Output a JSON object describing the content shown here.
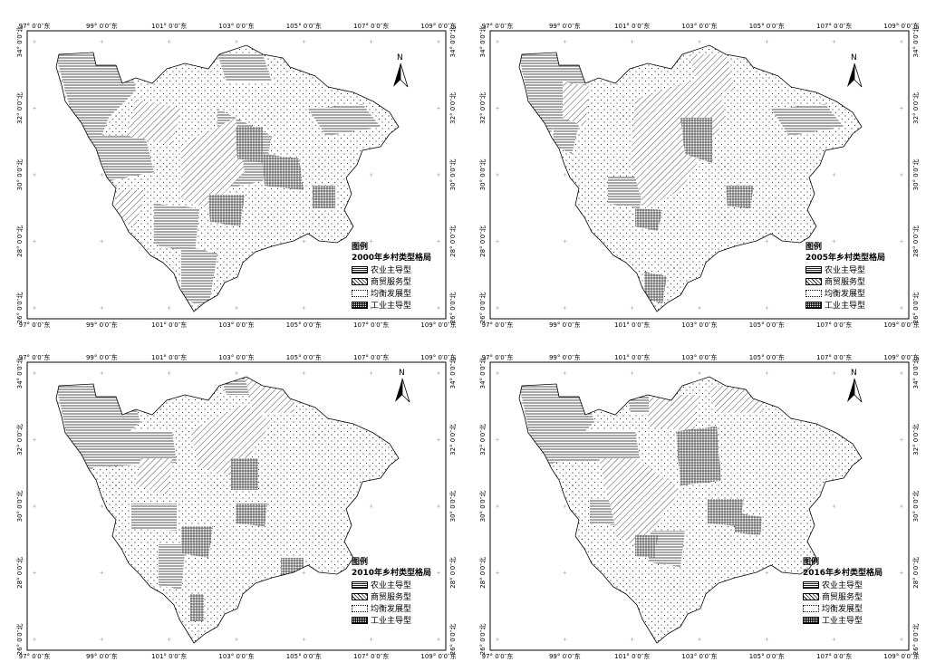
{
  "panels": [
    {
      "year_title": "2000年乡村类型格局"
    },
    {
      "year_title": "2005年乡村类型格局"
    },
    {
      "year_title": "2010年乡村类型格局"
    },
    {
      "year_title": "2016年乡村类型格局"
    }
  ],
  "legend": {
    "title": "图例",
    "items": [
      {
        "label": "农业主导型",
        "pattern": "horizontal-lines"
      },
      {
        "label": "商贸服务型",
        "pattern": "diagonal-lines"
      },
      {
        "label": "均衡发展型",
        "pattern": "dots"
      },
      {
        "label": "工业主导型",
        "pattern": "grid"
      }
    ]
  },
  "north_arrow": {
    "label": "N"
  },
  "axes": {
    "x_ticks": [
      "97° 0′0″东",
      "99° 0′0″东",
      "101° 0′0″东",
      "103° 0′0″东",
      "105° 0′0″东",
      "107° 0′0″东",
      "109° 0′0″东"
    ],
    "y_ticks": [
      "34° 0′0″北",
      "32° 0′0″北",
      "30° 0′0″北",
      "28° 0′0″北",
      "26° 0′0″北"
    ]
  }
}
